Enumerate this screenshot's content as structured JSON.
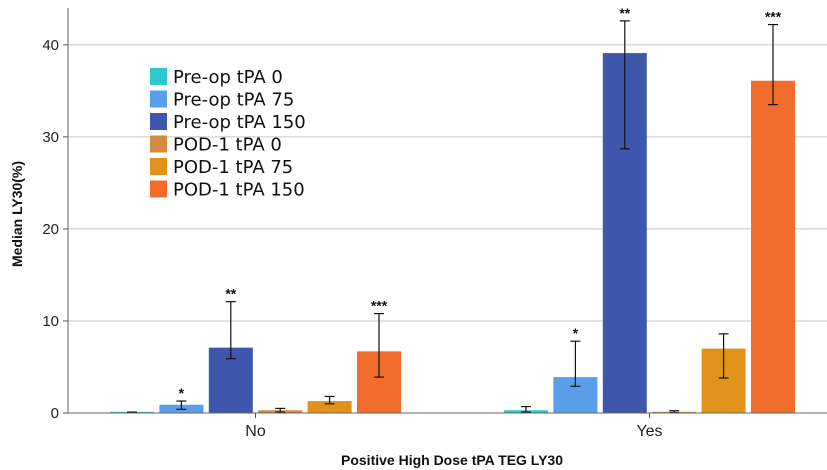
{
  "chart_data": {
    "type": "bar",
    "xlabel": "Positive High Dose tPA TEG LY30",
    "ylabel": "Median LY30(%)",
    "categories": [
      "No",
      "Yes"
    ],
    "ylim": [
      0,
      44
    ],
    "yticks": [
      0,
      10,
      20,
      30,
      40
    ],
    "grid": "horizontal",
    "legend_position": "top-left",
    "series": [
      {
        "name": "Pre-op tPA 0",
        "color": "#2ec9c9",
        "values": [
          0.1,
          0.3
        ],
        "err_low": [
          0.1,
          0.1
        ],
        "err_high": [
          0.1,
          0.7
        ],
        "sig": [
          "",
          ""
        ]
      },
      {
        "name": "Pre-op tPA 75",
        "color": "#5a9de8",
        "values": [
          0.9,
          3.9
        ],
        "err_low": [
          0.4,
          2.9
        ],
        "err_high": [
          1.3,
          7.8
        ],
        "sig": [
          "*",
          "*"
        ]
      },
      {
        "name": "Pre-op tPA 150",
        "color": "#3e56ab",
        "values": [
          7.1,
          39.1
        ],
        "err_low": [
          5.9,
          28.7
        ],
        "err_high": [
          12.1,
          42.6
        ],
        "sig": [
          "**",
          "**"
        ]
      },
      {
        "name": "POD-1 tPA 0",
        "color": "#d18c42",
        "values": [
          0.3,
          0.1
        ],
        "err_low": [
          0.1,
          0.05
        ],
        "err_high": [
          0.5,
          0.25
        ],
        "sig": [
          "",
          ""
        ]
      },
      {
        "name": "POD-1 tPA 75",
        "color": "#e0921a",
        "values": [
          1.3,
          7.0
        ],
        "err_low": [
          1.0,
          3.8
        ],
        "err_high": [
          1.8,
          8.6
        ],
        "sig": [
          "",
          ""
        ]
      },
      {
        "name": "POD-1 tPA 150",
        "color": "#f26d2c",
        "values": [
          6.7,
          36.1
        ],
        "err_low": [
          3.9,
          33.5
        ],
        "err_high": [
          10.8,
          42.2
        ],
        "sig": [
          "***",
          "***"
        ]
      }
    ]
  }
}
